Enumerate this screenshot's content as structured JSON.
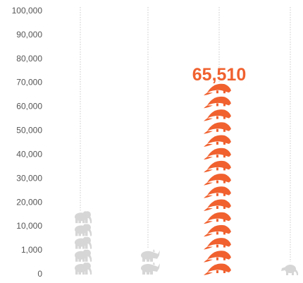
{
  "chart_data": {
    "type": "pictogram",
    "y_ticks": [
      "0",
      "1,000",
      "10,000",
      "20,000",
      "30,000",
      "40,000",
      "50,000",
      "60,000",
      "70,000",
      "80,000",
      "90,000",
      "100,000"
    ],
    "columns": [
      {
        "icon": "elephant-icon",
        "icon_count": 5,
        "color": "#d6d6d6"
      },
      {
        "icon": "rhino-icon",
        "icon_count": 2,
        "color": "#d6d6d6"
      },
      {
        "icon": "pangolin-icon",
        "icon_count": 15,
        "color": "#f0612f",
        "value": 65510,
        "value_label": "65,510"
      },
      {
        "icon": "small-mammal-icon",
        "icon_count": 1,
        "color": "#d6d6d6"
      }
    ],
    "colors": {
      "highlight": "#f0612f",
      "muted": "#d6d6d6",
      "text": "#555555",
      "guide": "#c8c8c8"
    }
  }
}
